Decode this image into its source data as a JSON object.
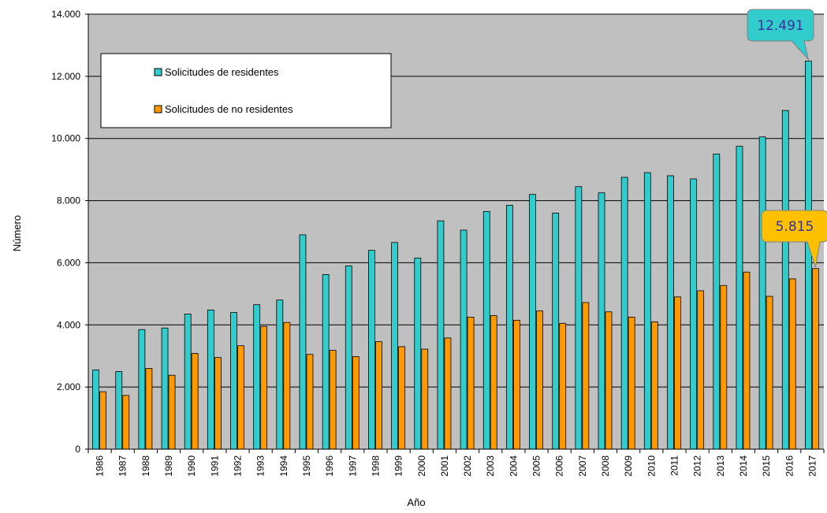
{
  "chart_data": {
    "type": "bar",
    "xlabel": "Año",
    "ylabel": "Número",
    "ylim": [
      0,
      14000
    ],
    "yticks": [
      0,
      2000,
      4000,
      6000,
      8000,
      10000,
      12000,
      14000
    ],
    "ytick_labels": [
      "0",
      "2.000",
      "4.000",
      "6.000",
      "8.000",
      "10.000",
      "12.000",
      "14.000"
    ],
    "grid": true,
    "legend_position": "top-left",
    "categories": [
      "1986",
      "1987",
      "1988",
      "1989",
      "1990",
      "1991",
      "1992",
      "1993",
      "1994",
      "1995",
      "1996",
      "1997",
      "1998",
      "1999",
      "2000",
      "2001",
      "2002",
      "2003",
      "2004",
      "2005",
      "2006",
      "2007",
      "2008",
      "2009",
      "2010",
      "2011",
      "2012",
      "2013",
      "2014",
      "2015",
      "2016",
      "2017"
    ],
    "series": [
      {
        "name": "Solicitudes de residentes",
        "color": "#33CCCC",
        "values": [
          2550,
          2500,
          3850,
          3900,
          4350,
          4480,
          4400,
          4650,
          4800,
          6900,
          5620,
          5900,
          6400,
          6650,
          6150,
          7350,
          7050,
          7650,
          7850,
          8200,
          7600,
          8450,
          8250,
          8750,
          8900,
          8800,
          8700,
          9500,
          9750,
          10050,
          10900,
          12491
        ]
      },
      {
        "name": "Solicitudes de no residentes",
        "color": "#FF9900",
        "values": [
          1850,
          1730,
          2600,
          2380,
          3080,
          2950,
          3330,
          3950,
          4080,
          3050,
          3180,
          2980,
          3460,
          3300,
          3220,
          3580,
          4250,
          4300,
          4150,
          4450,
          4050,
          4720,
          4420,
          4250,
          4100,
          4900,
          5100,
          5270,
          5700,
          4920,
          5480,
          5815
        ]
      }
    ],
    "callouts": [
      {
        "label": "12.491",
        "series": 0,
        "index": 31,
        "fill": "#33CCCC",
        "text_color": "#333399"
      },
      {
        "label": "5.815",
        "series": 1,
        "index": 31,
        "fill": "#FFC000",
        "text_color": "#333399"
      }
    ],
    "plot_background": "#C0C0C0"
  }
}
